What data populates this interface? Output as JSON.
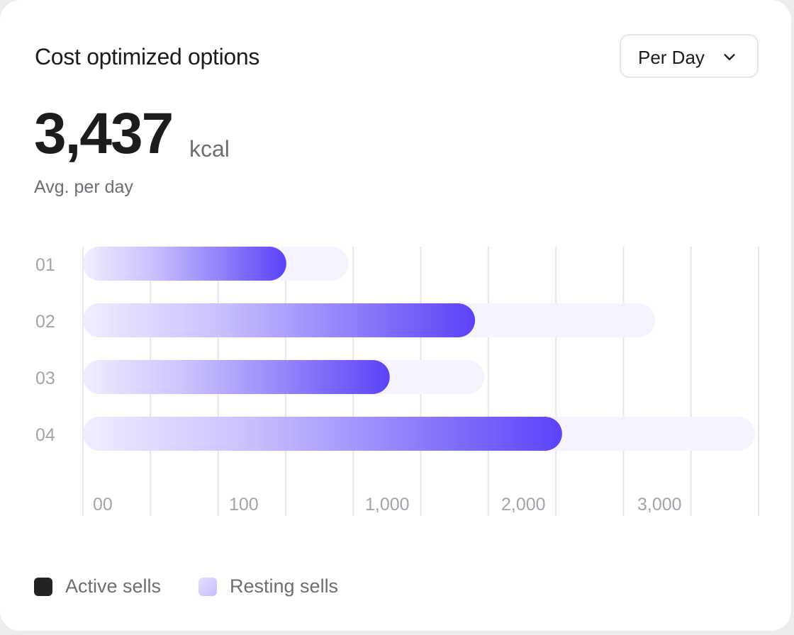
{
  "card": {
    "title": "Cost optimized options"
  },
  "dropdown": {
    "selected": "Per Day",
    "icon": "chevron-down-icon"
  },
  "metric": {
    "value": "3,437",
    "unit": "kcal",
    "caption": "Avg. per day"
  },
  "legend": {
    "items": [
      {
        "label": "Active sells",
        "color": "#232326"
      },
      {
        "label": "Resting sells",
        "color": "#c4bdfd"
      }
    ]
  },
  "colors": {
    "accent": "#5a43f7",
    "accent_light": "#f1eeff",
    "track": "#f5f3ff",
    "grid": "#e7e7eb",
    "tick_text": "#a3a3aa"
  },
  "chart_data": {
    "type": "bar",
    "orientation": "horizontal",
    "categories": [
      "01",
      "02",
      "03",
      "04"
    ],
    "x_tick_labels": [
      "00",
      "100",
      "1,000",
      "2,000",
      "3,000"
    ],
    "series": [
      {
        "name": "Active sells",
        "values": [
          1180,
          2275,
          1780,
          2780
        ]
      },
      {
        "name": "Resting sells",
        "values": [
          1540,
          3320,
          2330,
          3900
        ]
      }
    ],
    "xlim": [
      0,
      3920
    ],
    "grid": true,
    "legend_position": "bottom-left"
  }
}
